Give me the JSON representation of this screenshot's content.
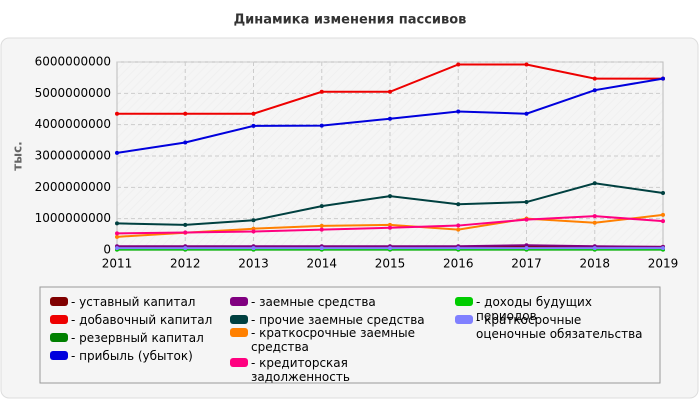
{
  "chart_data": {
    "type": "line",
    "title": "Динамика изменения пассивов",
    "y_label": "тыс.",
    "categories": [
      "2011",
      "2012",
      "2013",
      "2014",
      "2015",
      "2016",
      "2017",
      "2018",
      "2019"
    ],
    "ylim": [
      0,
      6000000000
    ],
    "yticks": [
      0,
      1000000000,
      2000000000,
      3000000000,
      4000000000,
      5000000000,
      6000000000
    ],
    "grid": true,
    "series": [
      {
        "name": "уставный капитал",
        "color": "#800000",
        "values": [
          100000000,
          100000000,
          100000000,
          100000000,
          100000000,
          100000000,
          100000000,
          100000000,
          100000000
        ]
      },
      {
        "name": "добавочный капитал",
        "color": "#ee0000",
        "values": [
          4350000000,
          4350000000,
          4350000000,
          5050000000,
          5050000000,
          5920000000,
          5920000000,
          5470000000,
          5470000000
        ]
      },
      {
        "name": "резервный капитал",
        "color": "#008000",
        "values": [
          10000000,
          10000000,
          10000000,
          10000000,
          10000000,
          10000000,
          10000000,
          10000000,
          10000000
        ]
      },
      {
        "name": "прибыль (убыток)",
        "color": "#0000dd",
        "values": [
          3100000000,
          3430000000,
          3960000000,
          3970000000,
          4190000000,
          4420000000,
          4350000000,
          5100000000,
          5470000000
        ]
      },
      {
        "name": "заемные средства",
        "color": "#800080",
        "values": [
          120000000,
          120000000,
          120000000,
          120000000,
          120000000,
          120000000,
          150000000,
          120000000,
          100000000
        ]
      },
      {
        "name": "прочие заемные средства",
        "color": "#004040",
        "values": [
          850000000,
          800000000,
          950000000,
          1400000000,
          1720000000,
          1460000000,
          1530000000,
          2130000000,
          1820000000
        ]
      },
      {
        "name": "краткосрочные заемные средства",
        "color": "#ff8000",
        "values": [
          420000000,
          550000000,
          680000000,
          770000000,
          800000000,
          650000000,
          1000000000,
          870000000,
          1120000000
        ]
      },
      {
        "name": "кредиторская задолженность",
        "color": "#ff0080",
        "values": [
          530000000,
          560000000,
          590000000,
          650000000,
          710000000,
          780000000,
          970000000,
          1080000000,
          920000000
        ]
      },
      {
        "name": "доходы будущих периодов",
        "color": "#00cc00",
        "values": [
          20000000,
          20000000,
          20000000,
          20000000,
          20000000,
          20000000,
          20000000,
          20000000,
          20000000
        ]
      },
      {
        "name": "краткосрочные оценочные обязательства",
        "color": "#8080ff",
        "values": [
          60000000,
          60000000,
          60000000,
          60000000,
          60000000,
          60000000,
          60000000,
          60000000,
          60000000
        ]
      }
    ]
  }
}
